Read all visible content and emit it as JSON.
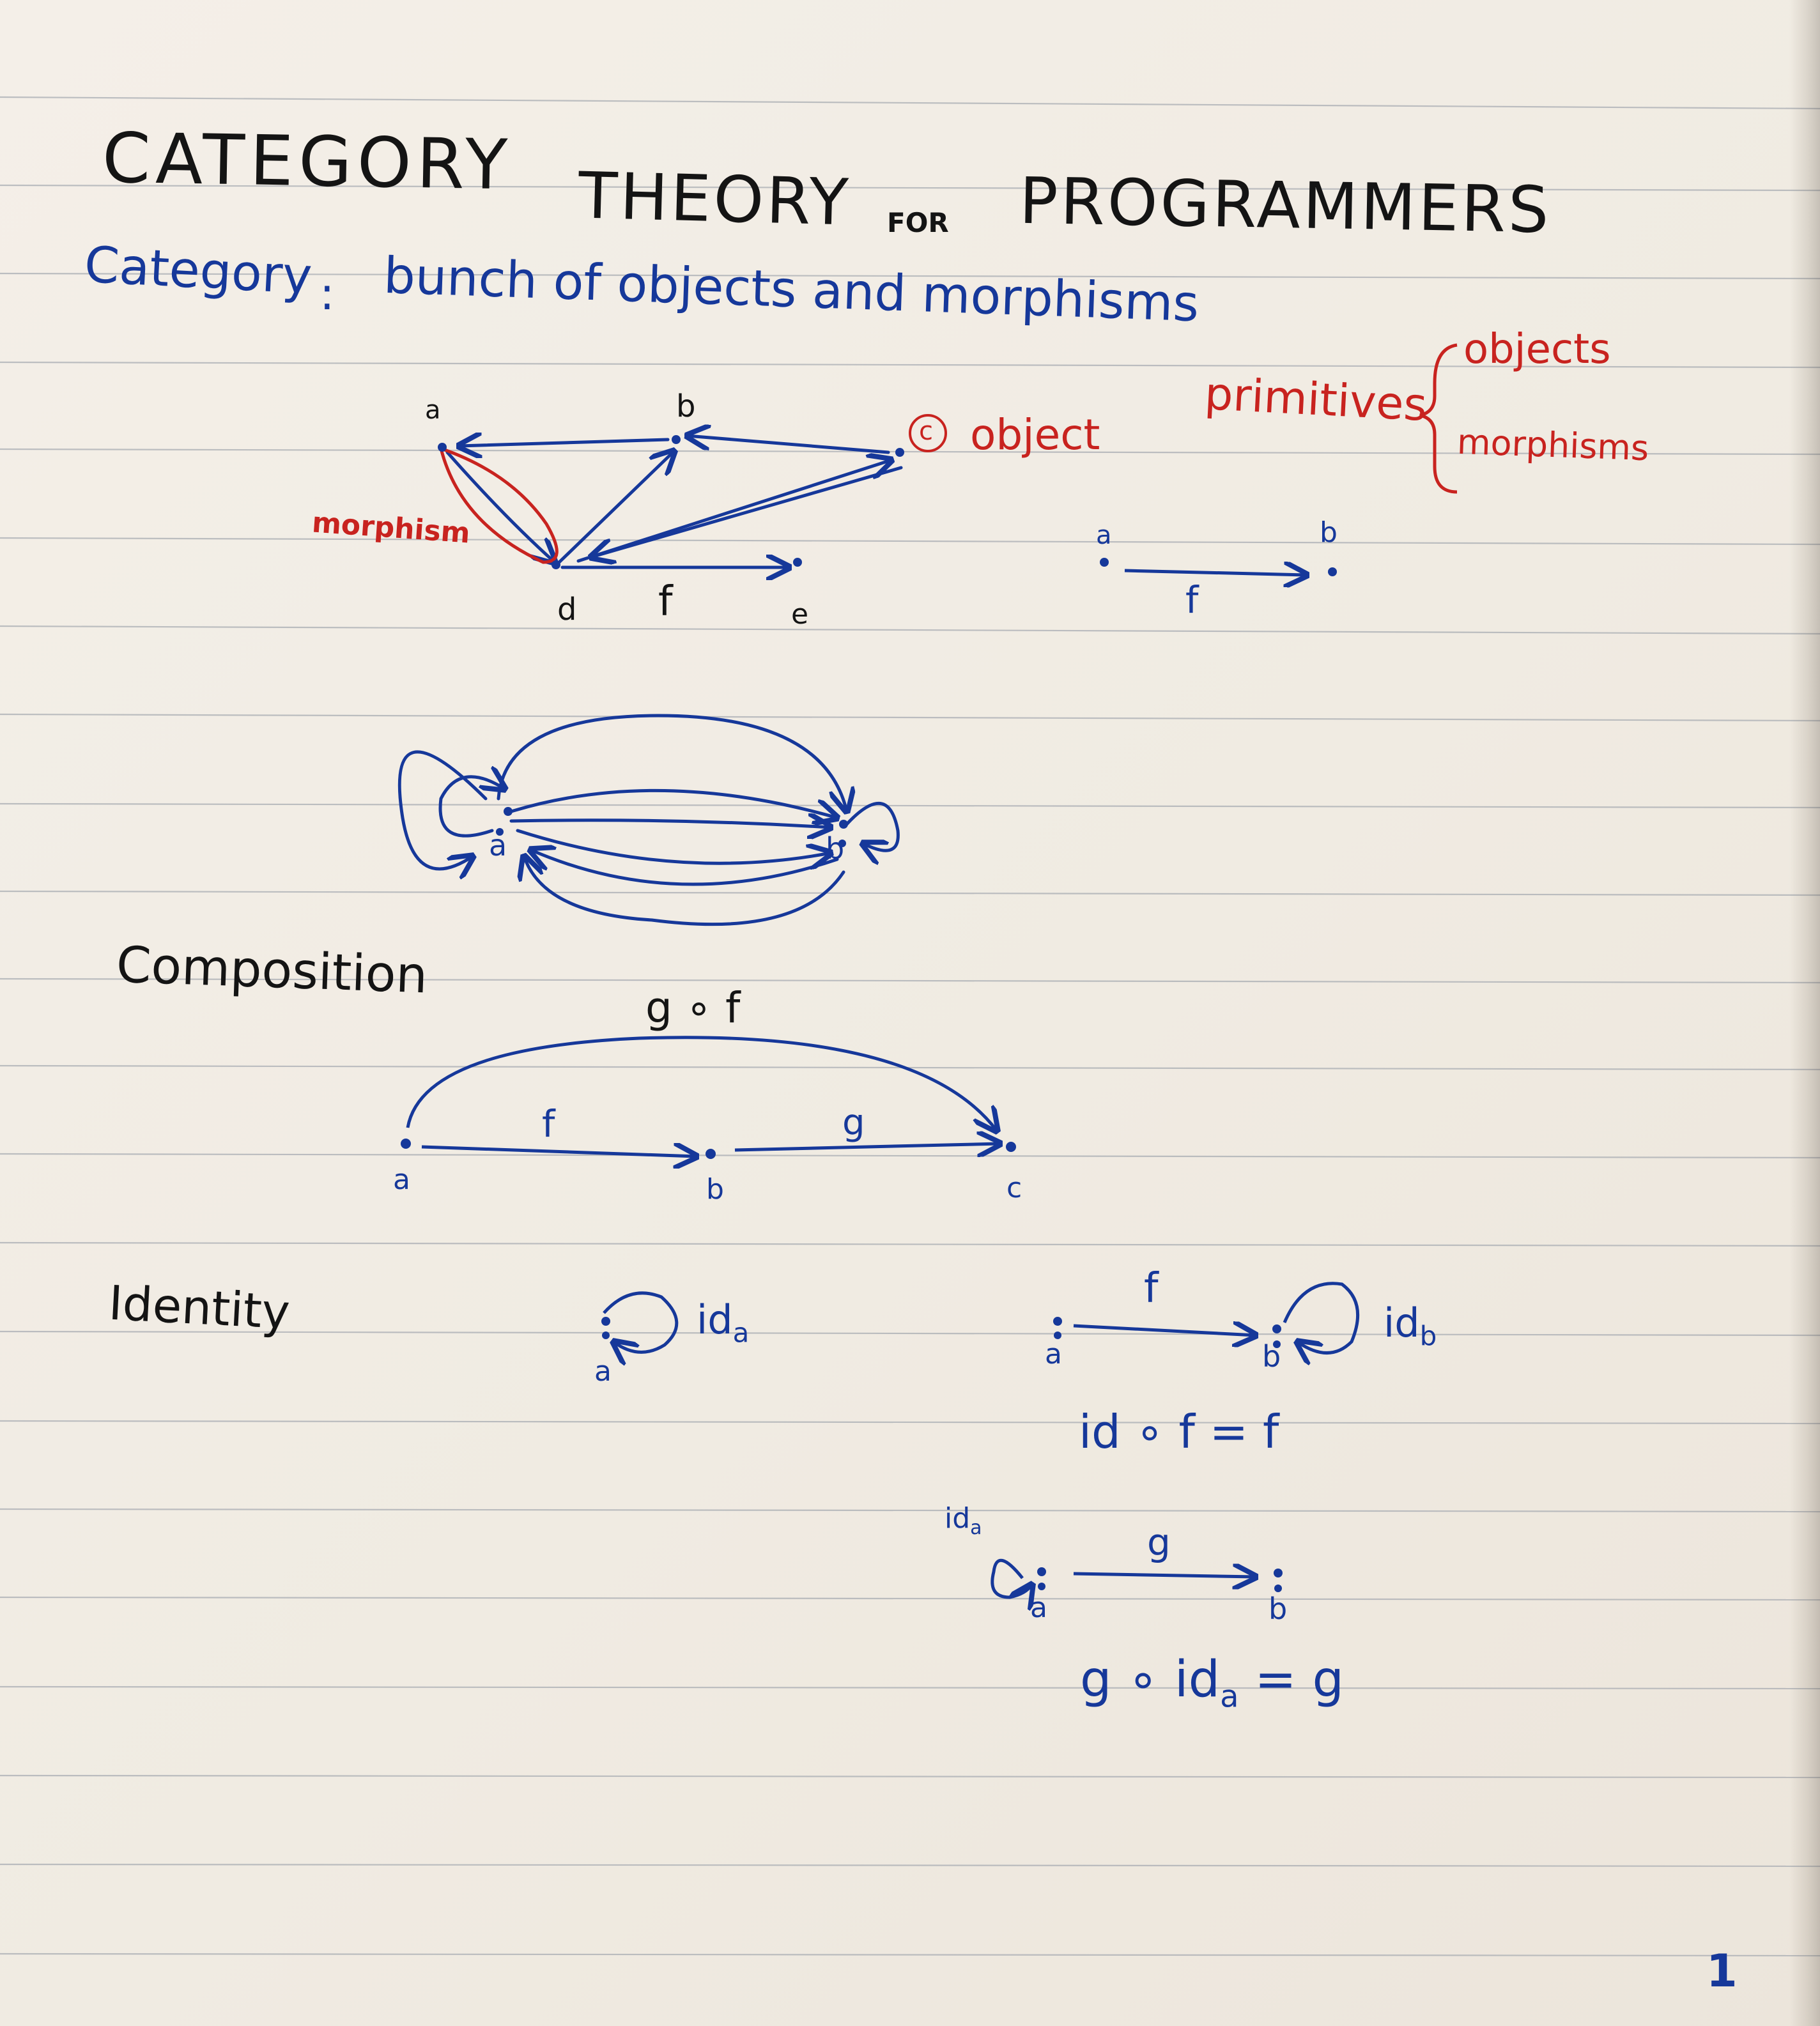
{
  "title": {
    "word1": "CATEGORY",
    "word2": "THEORY",
    "word3": "FOR",
    "word4": "PROGRAMMERS"
  },
  "definition": {
    "term": "Category",
    "equals": ":",
    "text": "bunch of objects and morphisms"
  },
  "diagram1": {
    "labels": {
      "a": "a",
      "b": "b",
      "c": "c",
      "d": "d",
      "e": "e",
      "f": "f"
    },
    "object_note": "object",
    "morphism_note": "morphism"
  },
  "primitives": {
    "label": "primitives",
    "items": [
      "objects",
      "morphisms"
    ]
  },
  "simple_arrow": {
    "a": "a",
    "b": "b",
    "f": "f"
  },
  "diagram2": {
    "a": "a",
    "b": "b"
  },
  "composition": {
    "heading": "Composition",
    "gof": "g ∘ f",
    "f": "f",
    "g": "g",
    "a": "a",
    "b": "b",
    "c": "c"
  },
  "identity": {
    "heading": "Identity",
    "ida_label": "id",
    "ida_sub": "a",
    "a1": "a",
    "f": "f",
    "a2": "a",
    "b2": "b",
    "idb_label": "id",
    "idb_sub": "b",
    "law1": "id ∘ f = f",
    "ida2_label": "id",
    "ida2_sub": "a",
    "g": "g",
    "a3": "a",
    "b3": "b",
    "law2_left": "g ∘ id",
    "law2_sub": "a",
    "law2_right": " = g"
  },
  "page_number": "1",
  "colors": {
    "black": "#141414",
    "blue": "#16389a",
    "red": "#c8231f",
    "rule": "#9aa0a8"
  }
}
